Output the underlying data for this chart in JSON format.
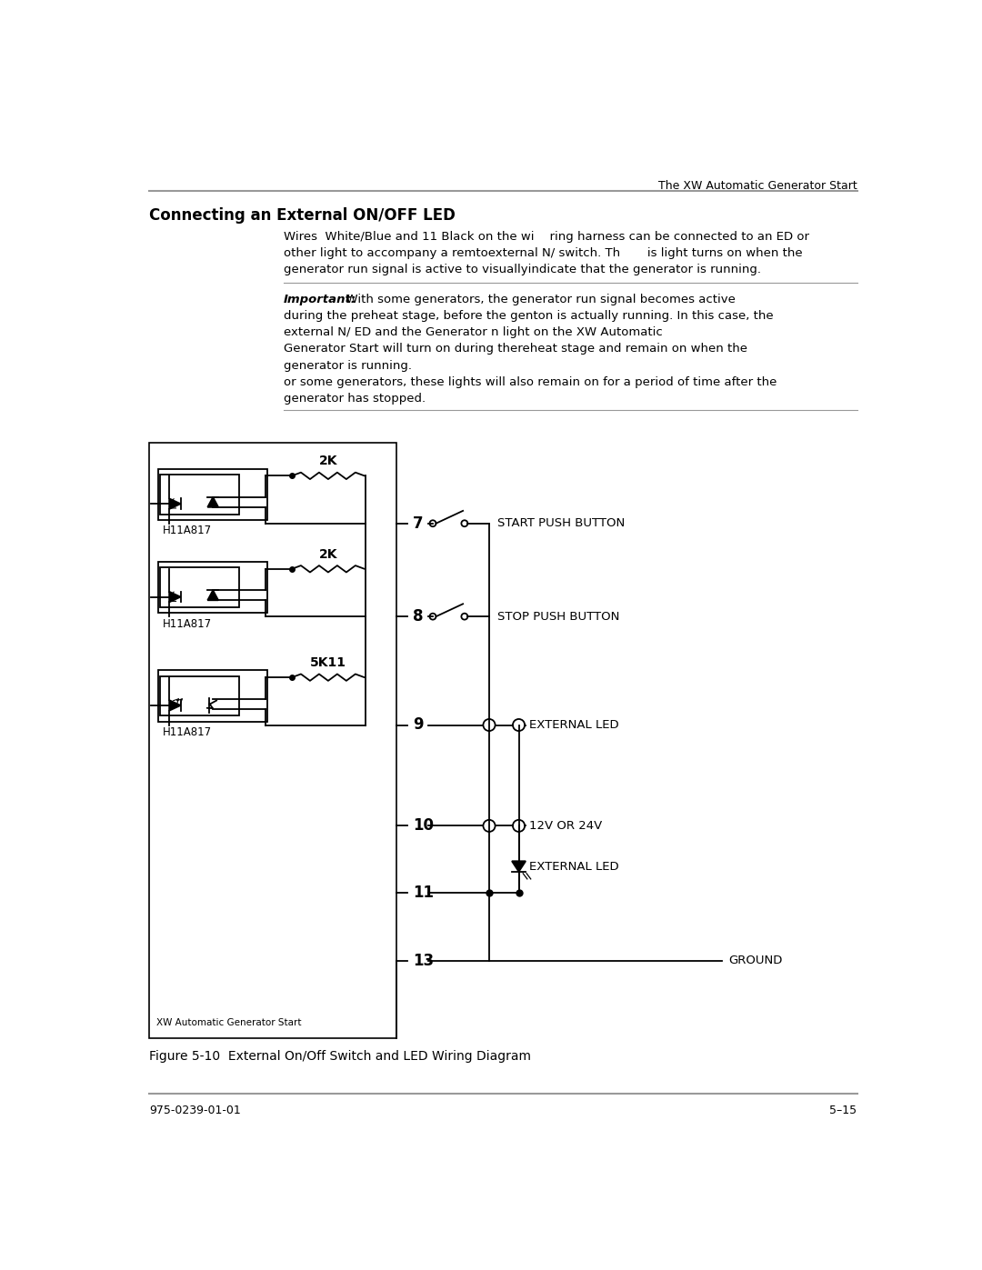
{
  "page_width": 10.8,
  "page_height": 13.97,
  "bg_color": "#ffffff",
  "header_text": "The XW Automatic Generator Start",
  "section_title": "Connecting an External ON/OFF LED",
  "body_text_lines": [
    "Wires  White/Blue and 11 Black on the wi    ring harness can be connected to an ED or",
    "other light to accompany a remtoexternal N/ switch. Th       is light turns on when the",
    "generator run signal is active to visuallyindicate that the generator is running."
  ],
  "important_label": "Important:",
  "important_lines": [
    "  With some generators, the generator run signal becomes active",
    "during the preheat stage, before the genton is actually running. In this case, the",
    "external N/ ED and the Generator n light on the XW Automatic",
    "Generator Start will turn on during thereheat stage and remain on when the",
    "generator is running.",
    "or some generators, these lights will also remain on for a period of time after the",
    "generator has stopped."
  ],
  "figure_caption": "Figure 5-10  External On/Off Switch and LED Wiring Diagram",
  "footer_left": "975-0239-01-01",
  "footer_right": "5–15"
}
